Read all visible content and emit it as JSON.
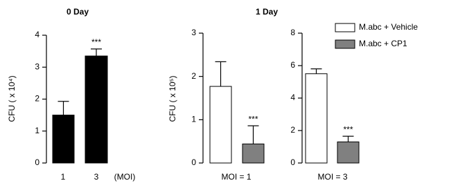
{
  "chart_data": [
    {
      "type": "bar",
      "title": "0 Day",
      "ylabel": "CFU ( x 10⁴)",
      "xlabel": "(MOI)",
      "categories": [
        "1",
        "3"
      ],
      "values": [
        1.5,
        3.35
      ],
      "errors": [
        0.43,
        0.22
      ],
      "color": "#000000",
      "annotation": "***",
      "ylim": [
        0,
        4
      ],
      "yticks": [
        0,
        1,
        2,
        3,
        4
      ]
    },
    {
      "type": "bar",
      "title": "1 Day",
      "ylabel": "CFU ( x 10⁵)",
      "xlabel": "MOI = 1",
      "series": [
        {
          "color": "#ffffff",
          "values": [
            1.77
          ],
          "errors": [
            0.57
          ]
        },
        {
          "color": "#808080",
          "values": [
            0.44
          ],
          "errors": [
            0.42
          ]
        }
      ],
      "annotation": "***",
      "ylim": [
        0,
        3
      ],
      "yticks": [
        0,
        1,
        2,
        3
      ]
    },
    {
      "type": "bar",
      "xlabel": "MOI = 3",
      "series": [
        {
          "name": "M.abc + Vehicle",
          "color": "#ffffff",
          "values": [
            5.5
          ],
          "errors": [
            0.3
          ]
        },
        {
          "name": "M.abc + CP1",
          "color": "#808080",
          "values": [
            1.3
          ],
          "errors": [
            0.35
          ]
        }
      ],
      "annotation": "***",
      "ylim": [
        0,
        8
      ],
      "yticks": [
        0,
        2,
        4,
        6,
        8
      ]
    }
  ]
}
